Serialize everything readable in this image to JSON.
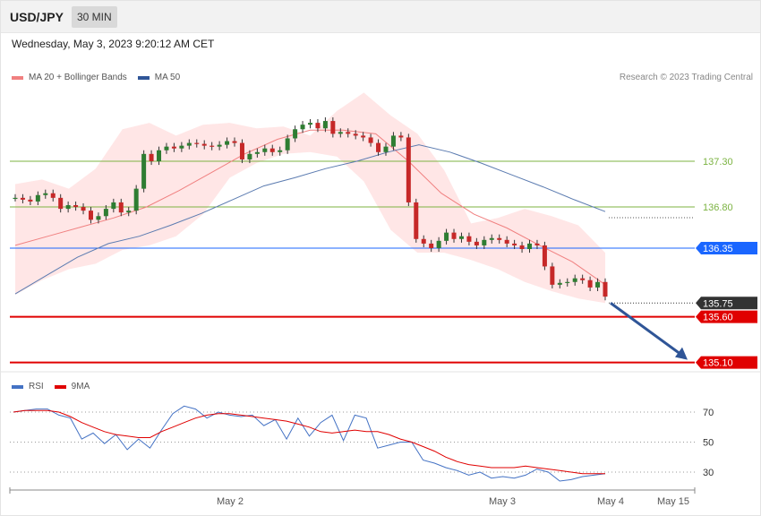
{
  "header": {
    "pair": "USD/JPY",
    "timeframe": "30 MIN"
  },
  "datetime": "Wednesday, May 3, 2023 9:20:12 AM CET",
  "legend_main": [
    {
      "label": "MA 20 + Bollinger Bands",
      "color": "#f08080"
    },
    {
      "label": "MA 50",
      "color": "#2f5597"
    }
  ],
  "credit": "Research © 2023 Trading Central",
  "legend_rsi": [
    {
      "label": "RSI",
      "color": "#4472c4"
    },
    {
      "label": "9MA",
      "color": "#e00000"
    }
  ],
  "chart_data": [
    {
      "type": "candlestick",
      "title": "USD/JPY",
      "ylim": [
        134.9,
        138.0
      ],
      "levels": [
        {
          "label": "137.30",
          "value": 137.3,
          "kind": "line",
          "color": "#7cb342"
        },
        {
          "label": "136.80",
          "value": 136.8,
          "kind": "line",
          "color": "#7cb342"
        },
        {
          "label": "136.35",
          "value": 136.35,
          "kind": "tag",
          "color": "#1a66ff"
        },
        {
          "label": "135.75",
          "value": 135.75,
          "kind": "tag",
          "color": "#333333"
        },
        {
          "label": "135.60",
          "value": 135.6,
          "kind": "tag",
          "color": "#e00000"
        },
        {
          "label": "135.10",
          "value": 135.1,
          "kind": "tag",
          "color": "#e00000"
        }
      ],
      "forecast_arrow": {
        "from": 135.75,
        "to": 135.1,
        "color": "#2f5597"
      },
      "closes": [
        136.9,
        136.88,
        136.86,
        136.93,
        136.95,
        136.9,
        136.78,
        136.82,
        136.8,
        136.76,
        136.66,
        136.7,
        136.78,
        136.85,
        136.74,
        136.76,
        137.0,
        137.38,
        137.3,
        137.42,
        137.46,
        137.44,
        137.47,
        137.5,
        137.49,
        137.47,
        137.46,
        137.48,
        137.52,
        137.5,
        137.32,
        137.38,
        137.4,
        137.44,
        137.4,
        137.42,
        137.55,
        137.65,
        137.7,
        137.72,
        137.66,
        137.74,
        137.6,
        137.62,
        137.6,
        137.58,
        137.56,
        137.5,
        137.4,
        137.46,
        137.58,
        137.56,
        136.85,
        136.45,
        136.4,
        136.35,
        136.43,
        136.52,
        136.45,
        136.48,
        136.42,
        136.38,
        136.44,
        136.46,
        136.44,
        136.4,
        136.38,
        136.34,
        136.4,
        136.38,
        136.15,
        135.95,
        135.97,
        135.98,
        136.02,
        136.0,
        135.92,
        135.98,
        135.82
      ],
      "ma20": [
        136.38,
        136.48,
        136.58,
        136.68,
        136.8,
        136.98,
        137.18,
        137.38,
        137.54,
        137.64,
        137.64,
        137.6,
        137.3,
        136.95,
        136.72,
        136.57,
        136.38,
        136.2,
        135.95
      ],
      "ma50": [
        135.85,
        136.05,
        136.25,
        136.4,
        136.48,
        136.6,
        136.73,
        136.88,
        137.03,
        137.12,
        137.22,
        137.3,
        137.4,
        137.48,
        137.4,
        137.28,
        137.15,
        137.02,
        136.88,
        136.75
      ],
      "bb_upper": [
        137.05,
        137.1,
        137.0,
        137.22,
        137.65,
        137.72,
        137.58,
        137.7,
        137.72,
        137.66,
        137.68,
        137.58,
        137.85,
        138.05,
        137.8,
        137.6,
        137.2,
        136.62,
        136.68,
        136.78,
        136.7,
        136.6,
        136.3
      ],
      "bb_lower": [
        135.84,
        136.0,
        136.12,
        136.18,
        136.33,
        136.38,
        136.48,
        136.72,
        137.12,
        137.28,
        137.38,
        137.4,
        137.35,
        137.08,
        136.55,
        136.3,
        136.3,
        136.22,
        136.12,
        135.98,
        135.88,
        135.8,
        135.75
      ]
    },
    {
      "type": "line",
      "title": "RSI",
      "ylim": [
        20,
        80
      ],
      "yticks": [
        70,
        50,
        30
      ],
      "series": [
        {
          "name": "RSI",
          "color": "#4472c4",
          "values": [
            70,
            71,
            72,
            72,
            68,
            66,
            52,
            56,
            49,
            55,
            45,
            52,
            46,
            58,
            69,
            74,
            72,
            66,
            70,
            68,
            67,
            68,
            61,
            65,
            52,
            66,
            54,
            63,
            68,
            51,
            68,
            66,
            46,
            48,
            50,
            50,
            38,
            36,
            33,
            31,
            28,
            30,
            26,
            27,
            26,
            28,
            32,
            30,
            24,
            25,
            27,
            28,
            29
          ]
        },
        {
          "name": "9MA",
          "color": "#e00000",
          "values": [
            70,
            71,
            71,
            71,
            70,
            67,
            63,
            60,
            57,
            55,
            54,
            53,
            53,
            57,
            60,
            63,
            66,
            68,
            69,
            69,
            68,
            67,
            66,
            65,
            64,
            62,
            60,
            57,
            56,
            57,
            58,
            57,
            57,
            55,
            52,
            50,
            47,
            44,
            40,
            37,
            35,
            34,
            33,
            33,
            33,
            34,
            33,
            32,
            31,
            30,
            29,
            29,
            29
          ]
        }
      ]
    }
  ],
  "x_axis": {
    "labels": [
      "May 2",
      "May 3",
      "May 4",
      "May 15"
    ]
  }
}
